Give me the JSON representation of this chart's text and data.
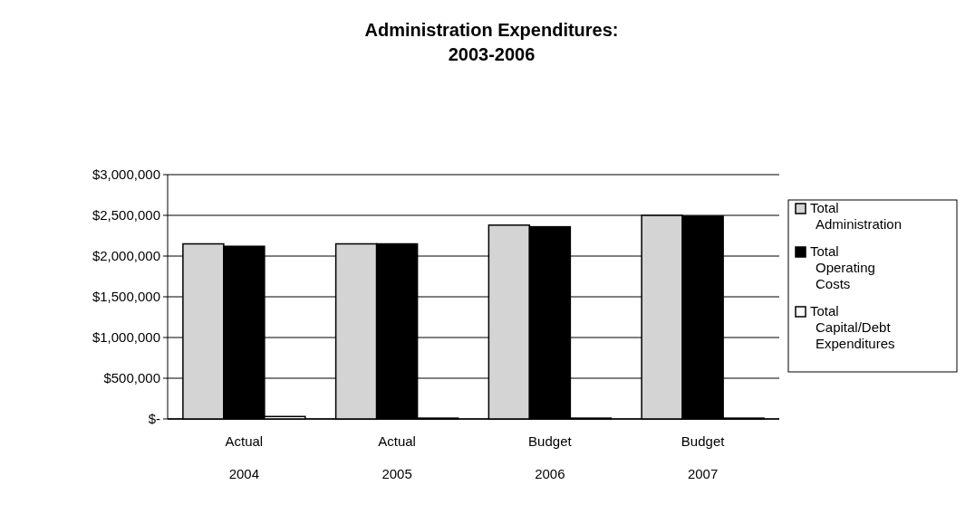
{
  "chart_data": {
    "type": "bar",
    "title": "Administration Expenditures:\n2003-2006",
    "categories": [
      "Actual\n2004",
      "Actual\n2005",
      "Budget\n2006",
      "Budget\n2007"
    ],
    "series": [
      {
        "name": "Total Administration",
        "color": "#d4d4d4",
        "values": [
          2150000,
          2150000,
          2380000,
          2500000
        ]
      },
      {
        "name": "Total Operating Costs",
        "color": "#000000",
        "values": [
          2120000,
          2150000,
          2360000,
          2490000
        ]
      },
      {
        "name": "Total Capital/Debt Expenditures",
        "color": "#ffffff",
        "values": [
          30000,
          10000,
          10000,
          10000
        ]
      }
    ],
    "ylim": [
      0,
      3000000
    ],
    "yticks": [
      {
        "value": 0,
        "label": "$-"
      },
      {
        "value": 500000,
        "label": "$500,000"
      },
      {
        "value": 1000000,
        "label": "$1,000,000"
      },
      {
        "value": 1500000,
        "label": "$1,500,000"
      },
      {
        "value": 2000000,
        "label": "$2,000,000"
      },
      {
        "value": 2500000,
        "label": "$2,500,000"
      },
      {
        "value": 3000000,
        "label": "$3,000,000"
      }
    ],
    "grid": "y",
    "legend": "right"
  }
}
